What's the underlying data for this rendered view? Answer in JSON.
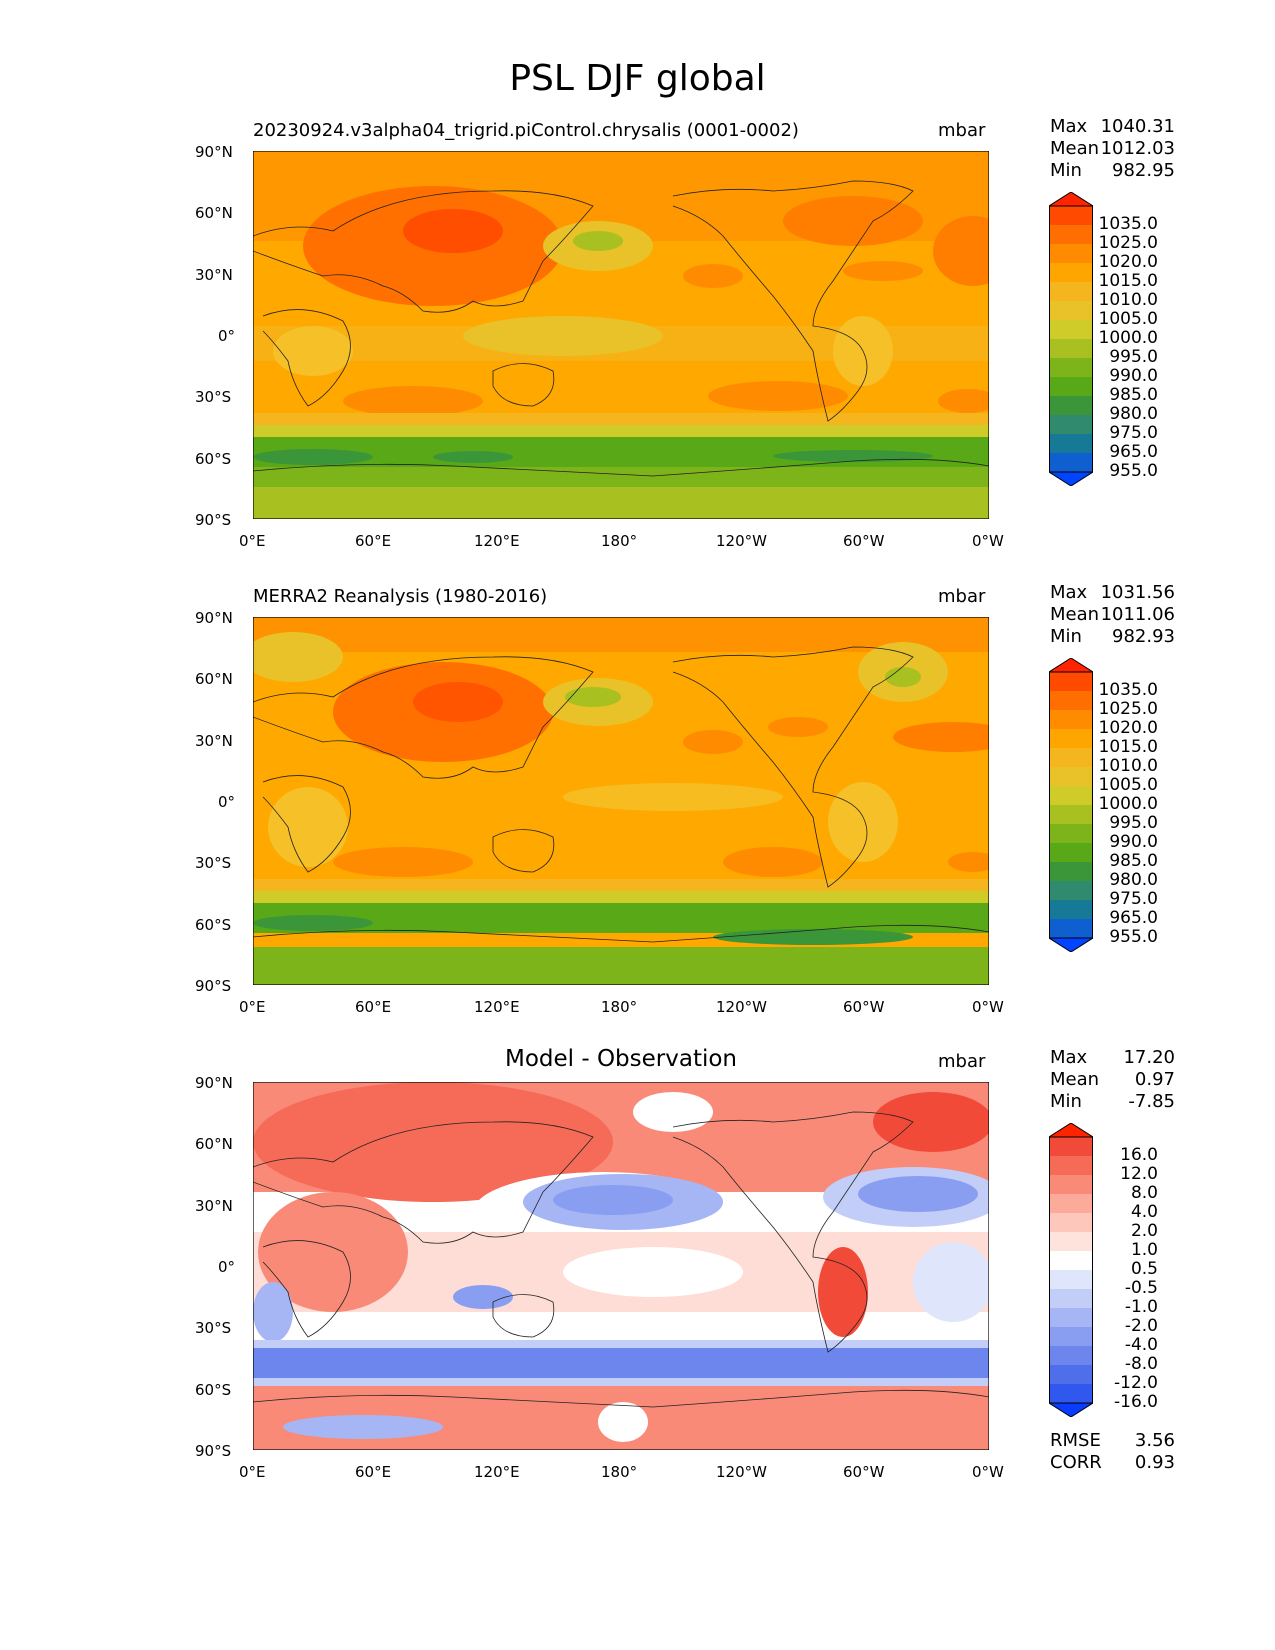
{
  "title": "PSL DJF global",
  "x_ticks": [
    "0°E",
    "60°E",
    "120°E",
    "180°",
    "120°W",
    "60°W",
    "0°W"
  ],
  "y_ticks": [
    "90°N",
    "60°N",
    "30°N",
    "0°",
    "30°S",
    "60°S",
    "90°S"
  ],
  "abs_levels": [
    "1035.0",
    "1025.0",
    "1020.0",
    "1015.0",
    "1010.0",
    "1005.0",
    "1000.0",
    "995.0",
    "990.0",
    "985.0",
    "980.0",
    "975.0",
    "965.0",
    "955.0"
  ],
  "abs_colors": [
    "#ff2400",
    "#ff4a00",
    "#ff6e00",
    "#ff8c00",
    "#ffa500",
    "#f5b51e",
    "#e8c228",
    "#cfcc2a",
    "#a8c020",
    "#7db41a",
    "#58a818",
    "#3a9638",
    "#2f8a6e",
    "#167a96",
    "#0f5fd0",
    "#0044ff"
  ],
  "diff_levels": [
    "16.0",
    "12.0",
    "8.0",
    "4.0",
    "2.0",
    "1.0",
    "0.5",
    "-0.5",
    "-1.0",
    "-2.0",
    "-4.0",
    "-8.0",
    "-12.0",
    "-16.0"
  ],
  "diff_colors": [
    "#ff2400",
    "#f24a38",
    "#f66a58",
    "#f98a78",
    "#fcaa9a",
    "#fdc7bb",
    "#fee3dc",
    "#ffffff",
    "#dfe6fb",
    "#c3cef8",
    "#a6b6f5",
    "#899ef1",
    "#6c86ee",
    "#4f6eea",
    "#3058ee",
    "#0a3cff"
  ],
  "panels": [
    {
      "subtitle": "20230924.v3alpha04_trigrid.piControl.chrysalis (0001-0002)",
      "units": "mbar",
      "stats": {
        "max_label": "Max",
        "max": "1040.31",
        "mean_label": "Mean",
        "mean": "1012.03",
        "min_label": "Min",
        "min": "982.95"
      }
    },
    {
      "subtitle": "MERRA2 Reanalysis (1980-2016)",
      "units": "mbar",
      "stats": {
        "max_label": "Max",
        "max": "1031.56",
        "mean_label": "Mean",
        "mean": "1011.06",
        "min_label": "Min",
        "min": "982.93"
      }
    },
    {
      "subtitle": "Model - Observation",
      "units": "mbar",
      "stats": {
        "max_label": "Max",
        "max": "17.20",
        "mean_label": "Mean",
        "mean": "0.97",
        "min_label": "Min",
        "min": "-7.85"
      },
      "rmse_label": "RMSE",
      "rmse": "3.56",
      "corr_label": "CORR",
      "corr": "0.93"
    }
  ]
}
